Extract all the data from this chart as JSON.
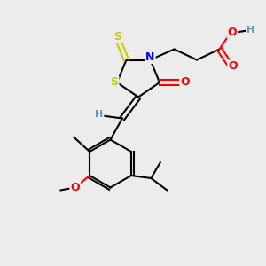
{
  "bg_color": "#ececec",
  "atom_colors": {
    "S": "#cccc00",
    "N": "#0000ff",
    "O": "#ff0000",
    "C": "#000000",
    "H": "#6699aa"
  },
  "bond_color": "#000000",
  "bond_lw": 1.5
}
